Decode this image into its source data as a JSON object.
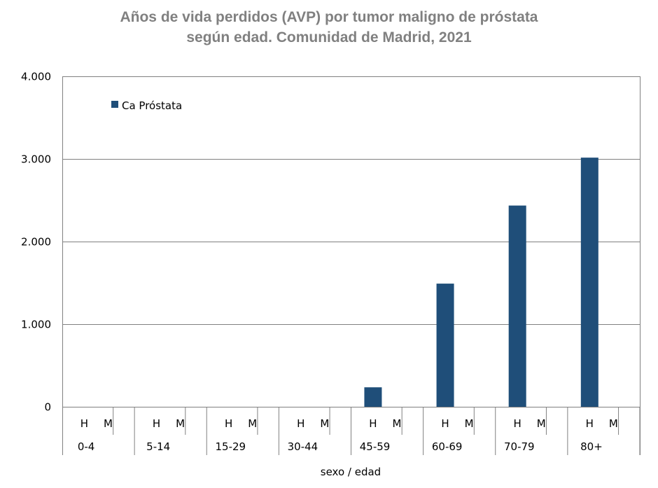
{
  "chart_data": {
    "type": "bar",
    "title": [
      "Años de vida perdidos (AVP) por tumor maligno de próstata",
      "según edad. Comunidad de Madrid, 2021"
    ],
    "xlabel": "sexo / edad",
    "ylabel": "",
    "ylim": [
      0,
      4000
    ],
    "yticks": [
      {
        "value": 0,
        "label": "0"
      },
      {
        "value": 1000,
        "label": "1.000"
      },
      {
        "value": 2000,
        "label": "2.000"
      },
      {
        "value": 3000,
        "label": "3.000"
      },
      {
        "value": 4000,
        "label": "4.000"
      }
    ],
    "grid": true,
    "legend_position": "top-left",
    "color": "#1f4e79",
    "groups": [
      {
        "label": "0-4",
        "bars": [
          {
            "sexo": "H",
            "value": 0
          },
          {
            "sexo": "M",
            "value": 0
          }
        ]
      },
      {
        "label": "5-14",
        "bars": [
          {
            "sexo": "H",
            "value": 0
          },
          {
            "sexo": "M",
            "value": 0
          }
        ]
      },
      {
        "label": "15-29",
        "bars": [
          {
            "sexo": "H",
            "value": 0
          },
          {
            "sexo": "M",
            "value": 0
          }
        ]
      },
      {
        "label": "30-44",
        "bars": [
          {
            "sexo": "H",
            "value": 0
          },
          {
            "sexo": "M",
            "value": 0
          }
        ]
      },
      {
        "label": "45-59",
        "bars": [
          {
            "sexo": "H",
            "value": 240
          },
          {
            "sexo": "M",
            "value": 0
          }
        ]
      },
      {
        "label": "60-69",
        "bars": [
          {
            "sexo": "H",
            "value": 1495
          },
          {
            "sexo": "M",
            "value": 0
          }
        ]
      },
      {
        "label": "70-79",
        "bars": [
          {
            "sexo": "H",
            "value": 2440
          },
          {
            "sexo": "M",
            "value": 0
          }
        ]
      },
      {
        "label": "80+",
        "bars": [
          {
            "sexo": "H",
            "value": 3020
          },
          {
            "sexo": "M",
            "value": 0
          }
        ]
      }
    ],
    "series": [
      {
        "name": "Ca Próstata"
      }
    ]
  }
}
